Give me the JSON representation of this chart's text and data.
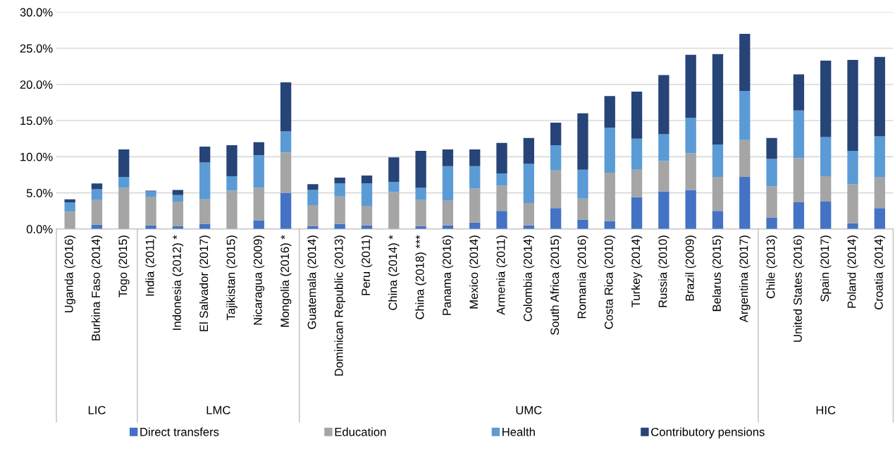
{
  "chart_data": {
    "type": "bar",
    "stacked": true,
    "categories": [
      "Uganda (2016)",
      "Burkina Faso (2014)",
      "Togo (2015)",
      "India (2011)",
      "Indonesia (2012) *",
      "El Salvador (2017)",
      "Tajikistan (2015)",
      "Nicaragua (2009)",
      "Mongolia (2016) *",
      "Guatemala (2014)",
      "Dominican Republic (2013)",
      "Peru (2011)",
      "China (2014) *",
      "China (2018) ***",
      "Panama (2016)",
      "Mexico (2014)",
      "Armenia (2011)",
      "Colombia (2014)",
      "South Africa (2015)",
      "Romania (2016)",
      "Costa Rica (2010)",
      "Turkey (2014)",
      "Russia (2010)",
      "Brazil (2009)",
      "Belarus (2015)",
      "Argentina (2017)",
      "Chile (2013)",
      "United States (2016)",
      "Spain (2017)",
      "Poland (2014)",
      "Croatia (2014)"
    ],
    "series": [
      {
        "name": "Direct transfers",
        "color": "#4472c4",
        "values": [
          0,
          0.6,
          null,
          0.5,
          0.4,
          0.7,
          0,
          1.2,
          5.0,
          0.4,
          0.7,
          0.5,
          0,
          0.4,
          0.5,
          0.9,
          2.5,
          0.5,
          2.9,
          1.3,
          1.1,
          4.4,
          5.2,
          5.4,
          2.5,
          7.2,
          1.6,
          3.7,
          3.8,
          0.8,
          2.9
        ]
      },
      {
        "name": "Education",
        "color": "#a5a5a5",
        "values": [
          2.4,
          3.4,
          5.7,
          3.9,
          3.4,
          3.4,
          5.3,
          4.5,
          5.6,
          2.9,
          3.8,
          2.7,
          5.1,
          3.6,
          3.4,
          4.7,
          3.5,
          3.1,
          5.2,
          2.9,
          6.7,
          3.8,
          4.2,
          5.1,
          4.7,
          5.1,
          4.3,
          6.1,
          3.5,
          5.4,
          4.3
        ]
      },
      {
        "name": "Health",
        "color": "#5b9bd5",
        "values": [
          1.3,
          1.5,
          1.5,
          0.8,
          0.9,
          5.1,
          2.0,
          4.5,
          2.9,
          2.1,
          1.8,
          3.1,
          1.4,
          1.7,
          4.8,
          3.1,
          1.7,
          5.4,
          3.5,
          4.0,
          6.2,
          4.3,
          3.7,
          4.9,
          4.5,
          6.8,
          3.8,
          6.6,
          5.4,
          4.6,
          5.6
        ]
      },
      {
        "name": "Contributory pensions",
        "color": "#264478",
        "values": [
          0.4,
          0.8,
          3.8,
          0.1,
          0.7,
          2.2,
          4.3,
          1.8,
          6.8,
          0.8,
          0.8,
          1.1,
          3.4,
          5.1,
          2.3,
          2.3,
          4.2,
          3.6,
          3.1,
          7.8,
          4.4,
          6.5,
          8.2,
          8.7,
          12.5,
          7.9,
          2.9,
          5.0,
          10.6,
          12.6,
          11.0
        ]
      }
    ],
    "ylim": [
      0,
      30
    ],
    "yticks": [
      {
        "value": 0,
        "label": "0.0%"
      },
      {
        "value": 5,
        "label": "5.0%"
      },
      {
        "value": 10,
        "label": "10.0%"
      },
      {
        "value": 15,
        "label": "15.0%"
      },
      {
        "value": 20,
        "label": "20.0%"
      },
      {
        "value": 25,
        "label": "25.0%"
      },
      {
        "value": 30,
        "label": "30.0%"
      }
    ],
    "grid": "y",
    "legend": "bottom",
    "annotations": [
      "LIC",
      "LMC",
      "UMC",
      "HIC"
    ]
  }
}
